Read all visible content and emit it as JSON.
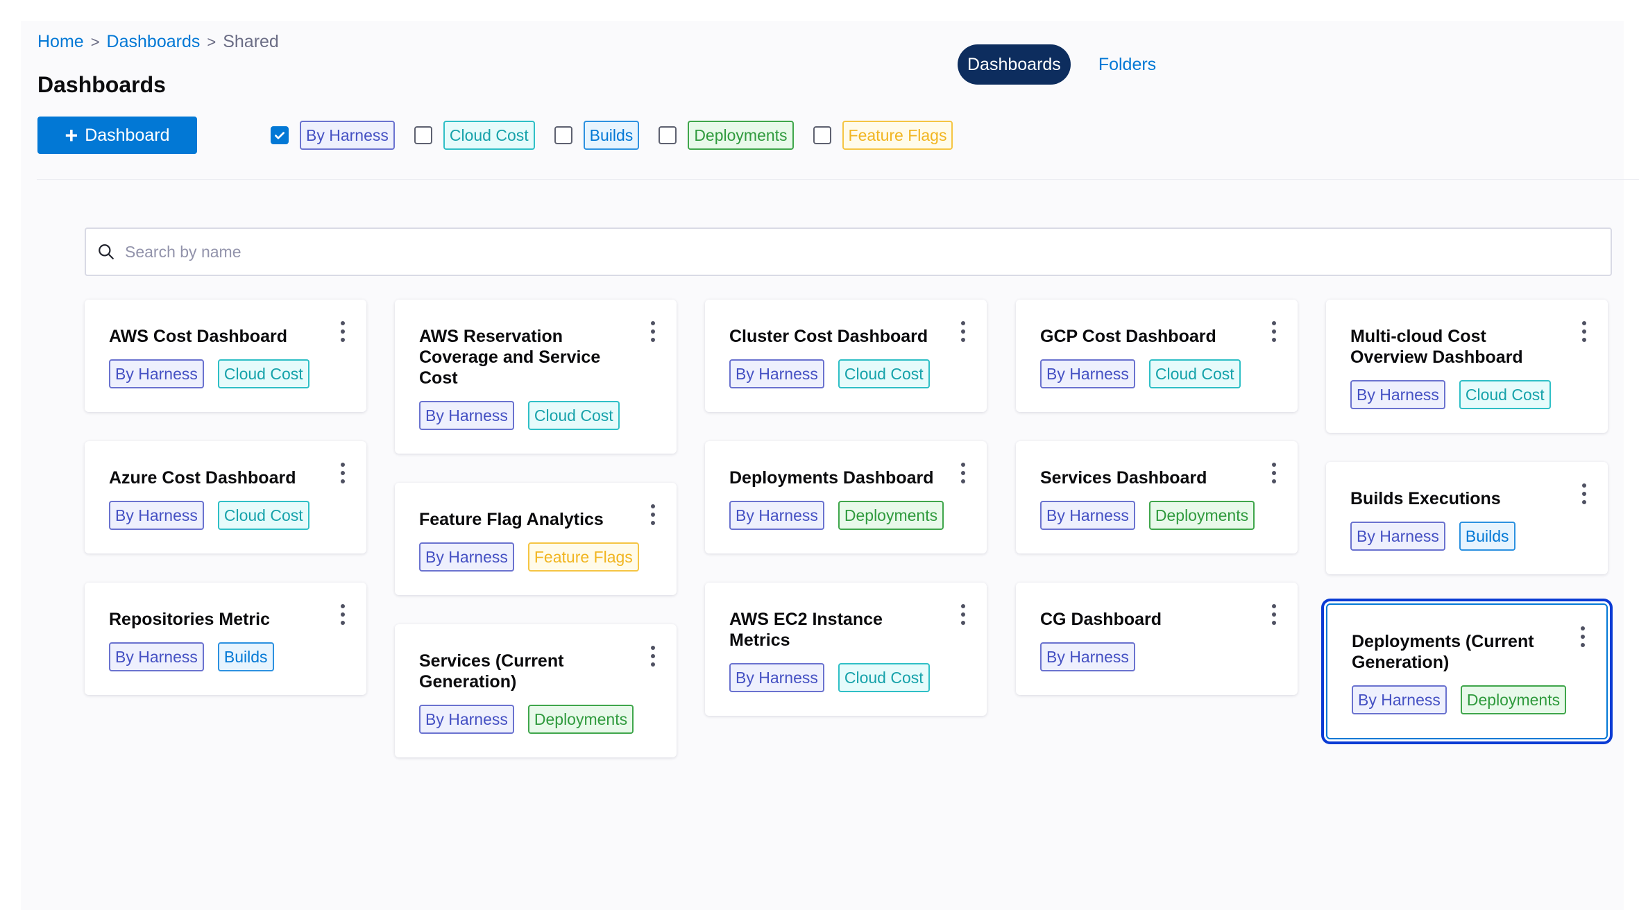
{
  "breadcrumb": {
    "home": "Home",
    "dashboards": "Dashboards",
    "current": "Shared",
    "separator": ">"
  },
  "page_title": "Dashboards",
  "add_button": {
    "icon": "plus-icon",
    "label": "Dashboard"
  },
  "view_toggle": {
    "active": "Dashboards",
    "inactive": "Folders"
  },
  "filters": [
    {
      "label": "By Harness",
      "checked": true
    },
    {
      "label": "Cloud Cost",
      "checked": false
    },
    {
      "label": "Builds",
      "checked": false
    },
    {
      "label": "Deployments",
      "checked": false
    },
    {
      "label": "Feature Flags",
      "checked": false
    }
  ],
  "search": {
    "placeholder": "Search by name",
    "value": ""
  },
  "colors": {
    "primary": "#0278d5",
    "toggle_active": "#0d2d5e",
    "selection_outline": "#0a3bd4",
    "tag_by_harness": "#4551c3",
    "tag_cloud_cost": "#16a2aa",
    "tag_builds": "#0278d5",
    "tag_deployments": "#2f9a3d",
    "tag_feature_flags": "#f1b520"
  },
  "cards": [
    {
      "title": "AWS Cost Dashboard",
      "tags": [
        "By Harness",
        "Cloud Cost"
      ]
    },
    {
      "title": "AWS Reservation Coverage and Service Cost",
      "tags": [
        "By Harness",
        "Cloud Cost"
      ]
    },
    {
      "title": "Cluster Cost Dashboard",
      "tags": [
        "By Harness",
        "Cloud Cost"
      ]
    },
    {
      "title": "GCP Cost Dashboard",
      "tags": [
        "By Harness",
        "Cloud Cost"
      ]
    },
    {
      "title": "Multi-cloud Cost Overview Dashboard",
      "tags": [
        "By Harness",
        "Cloud Cost"
      ]
    },
    {
      "title": "Azure Cost Dashboard",
      "tags": [
        "By Harness",
        "Cloud Cost"
      ]
    },
    {
      "title": "Feature Flag Analytics",
      "tags": [
        "By Harness",
        "Feature Flags"
      ]
    },
    {
      "title": "Deployments Dashboard",
      "tags": [
        "By Harness",
        "Deployments"
      ]
    },
    {
      "title": "Services Dashboard",
      "tags": [
        "By Harness",
        "Deployments"
      ]
    },
    {
      "title": "Builds Executions",
      "tags": [
        "By Harness",
        "Builds"
      ]
    },
    {
      "title": "Repositories Metric",
      "tags": [
        "By Harness",
        "Builds"
      ]
    },
    {
      "title": "Services (Current Generation)",
      "tags": [
        "By Harness",
        "Deployments"
      ]
    },
    {
      "title": "AWS EC2 Instance Metrics",
      "tags": [
        "By Harness",
        "Cloud Cost"
      ]
    },
    {
      "title": "CG Dashboard",
      "tags": [
        "By Harness"
      ]
    },
    {
      "title": "Deployments (Current Generation)",
      "tags": [
        "By Harness",
        "Deployments"
      ],
      "selected": true
    }
  ]
}
